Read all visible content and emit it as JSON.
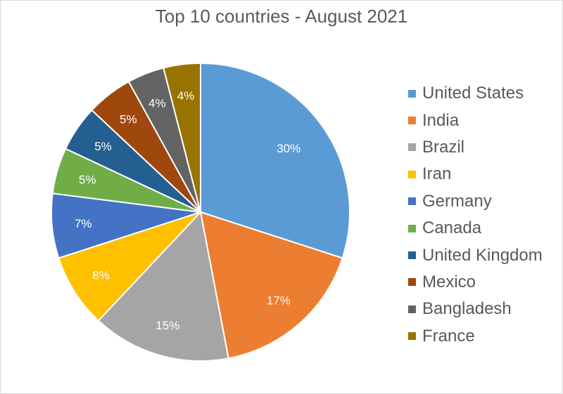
{
  "chart_data": {
    "type": "pie",
    "title": "Top 10 countries - August 2021",
    "categories": [
      "United States",
      "India",
      "Brazil",
      "Iran",
      "Germany",
      "Canada",
      "United Kingdom",
      "Mexico",
      "Bangladesh",
      "France"
    ],
    "values": [
      30,
      17,
      15,
      8,
      7,
      5,
      5,
      5,
      4,
      4
    ],
    "labels": [
      "30%",
      "17%",
      "15%",
      "8%",
      "7%",
      "5%",
      "5%",
      "5%",
      "4%",
      "4%"
    ],
    "colors": [
      "#5b9bd5",
      "#ed7d31",
      "#a5a5a5",
      "#ffc000",
      "#4472c4",
      "#70ad47",
      "#255e91",
      "#9e480e",
      "#636363",
      "#997300"
    ],
    "legend_position": "right"
  }
}
